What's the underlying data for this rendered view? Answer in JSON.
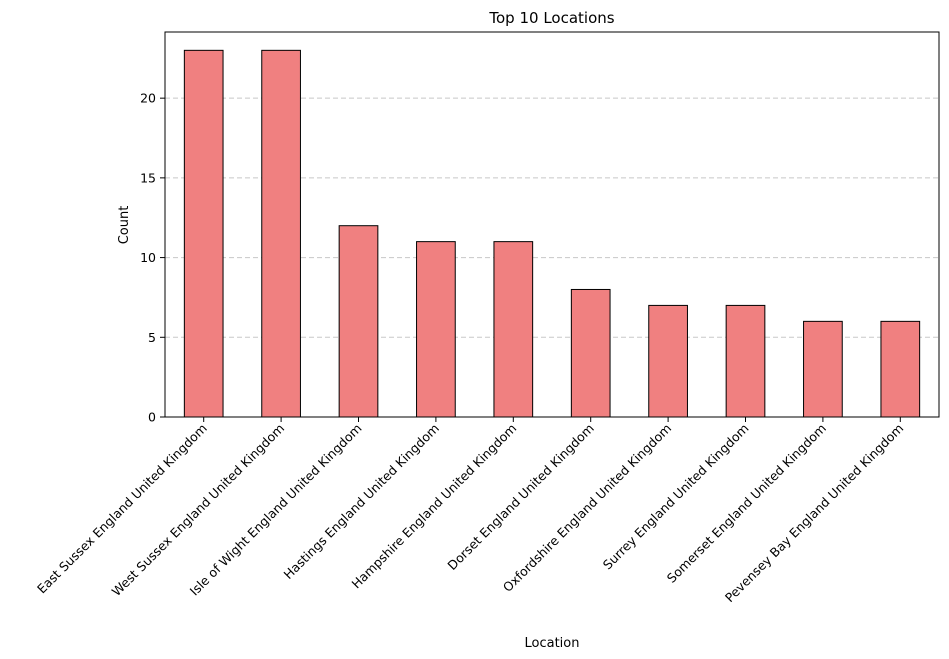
{
  "chart_data": {
    "type": "bar",
    "title": "Top 10 Locations",
    "xlabel": "Location",
    "ylabel": "Count",
    "categories": [
      "East Sussex England United Kingdom",
      "West Sussex England United Kingdom",
      "Isle of Wight England United Kingdom",
      "Hastings England United Kingdom",
      "Hampshire England United Kingdom",
      "Dorset England United Kingdom",
      "Oxfordshire England United Kingdom",
      "Surrey England United Kingdom",
      "Somerset England United Kingdom",
      "Pevensey Bay England United Kingdom"
    ],
    "values": [
      23,
      23,
      12,
      11,
      11,
      8,
      7,
      7,
      6,
      6
    ],
    "ylim": [
      0,
      24.15
    ],
    "yticks": [
      0,
      5,
      10,
      15,
      20
    ],
    "grid": "y-dashed",
    "bar_color": "#f08080",
    "bar_edge_color": "#000000",
    "grid_color": "#c8c8c8"
  }
}
